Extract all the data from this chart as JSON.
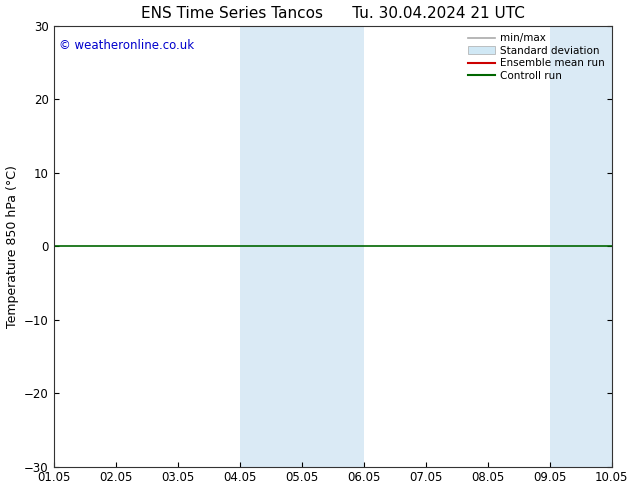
{
  "title": "ENS Time Series Tancos      Tu. 30.04.2024 21 UTC",
  "ylabel": "Temperature 850 hPa (°C)",
  "ylim": [
    -30,
    30
  ],
  "yticks": [
    -30,
    -20,
    -10,
    0,
    10,
    20,
    30
  ],
  "xlim": [
    0,
    9
  ],
  "xtick_labels": [
    "01.05",
    "02.05",
    "03.05",
    "04.05",
    "05.05",
    "06.05",
    "07.05",
    "08.05",
    "09.05",
    "10.05"
  ],
  "shaded_regions": [
    {
      "xmin": 3.0,
      "xmax": 4.0,
      "color": "#daeaf5"
    },
    {
      "xmin": 4.0,
      "xmax": 5.0,
      "color": "#daeaf5"
    },
    {
      "xmin": 8.0,
      "xmax": 8.5,
      "color": "#daeaf5"
    },
    {
      "xmin": 8.5,
      "xmax": 9.0,
      "color": "#daeaf5"
    }
  ],
  "hline_y": 0,
  "hline_color": "#006600",
  "copyright_text": "© weatheronline.co.uk",
  "copyright_color": "#0000cc",
  "legend_labels": [
    "min/max",
    "Standard deviation",
    "Ensemble mean run",
    "Controll run"
  ],
  "legend_line_colors": [
    "#aaaaaa",
    "#bbbbbb",
    "#cc0000",
    "#006600"
  ],
  "background_color": "#ffffff",
  "title_fontsize": 11,
  "label_fontsize": 9,
  "tick_fontsize": 8.5
}
